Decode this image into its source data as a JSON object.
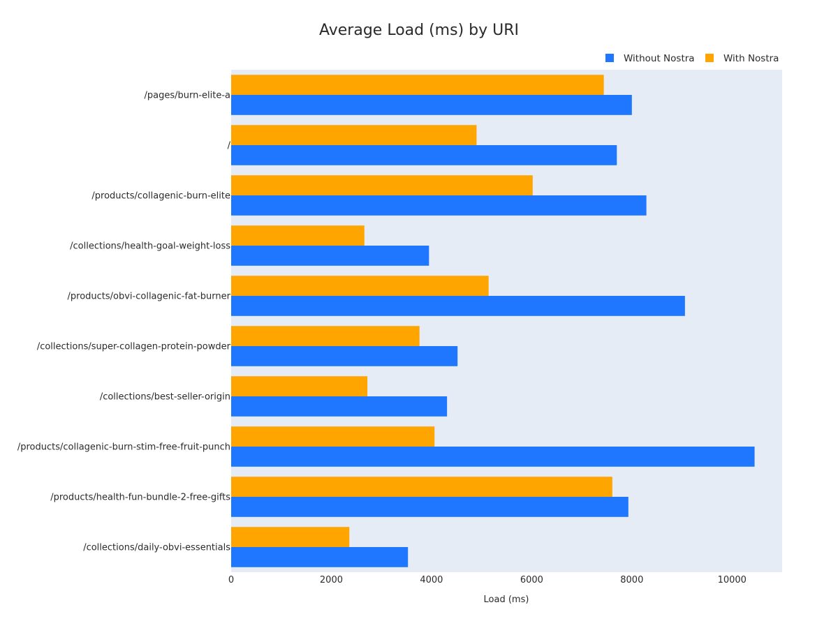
{
  "chart_data": {
    "type": "bar",
    "orientation": "horizontal",
    "title": "Average Load (ms) by URI",
    "xlabel": "Load (ms)",
    "ylabel": "",
    "xlim": [
      0,
      11000
    ],
    "xticks": [
      0,
      2000,
      4000,
      6000,
      8000,
      10000
    ],
    "grid": false,
    "legend_position": "top-right",
    "categories": [
      "/pages/burn-elite-a",
      "/",
      "/products/collagenic-burn-elite",
      "/collections/health-goal-weight-loss",
      "/products/obvi-collagenic-fat-burner",
      "/collections/super-collagen-protein-powder",
      "/collections/best-seller-origin",
      "/products/collagenic-burn-stim-free-fruit-punch",
      "/products/health-fun-bundle-2-free-gifts",
      "/collections/daily-obvi-essentials"
    ],
    "series": [
      {
        "name": "Without Nostra",
        "color": "#1f77ff",
        "values": [
          8000,
          7700,
          8290,
          3950,
          9060,
          4520,
          4310,
          10450,
          7930,
          3530
        ]
      },
      {
        "name": "With Nostra",
        "color": "#ffa500",
        "values": [
          7440,
          4900,
          6020,
          2660,
          5140,
          3760,
          2720,
          4060,
          7610,
          2360
        ]
      }
    ],
    "plot_background": "#e5ecf6"
  }
}
